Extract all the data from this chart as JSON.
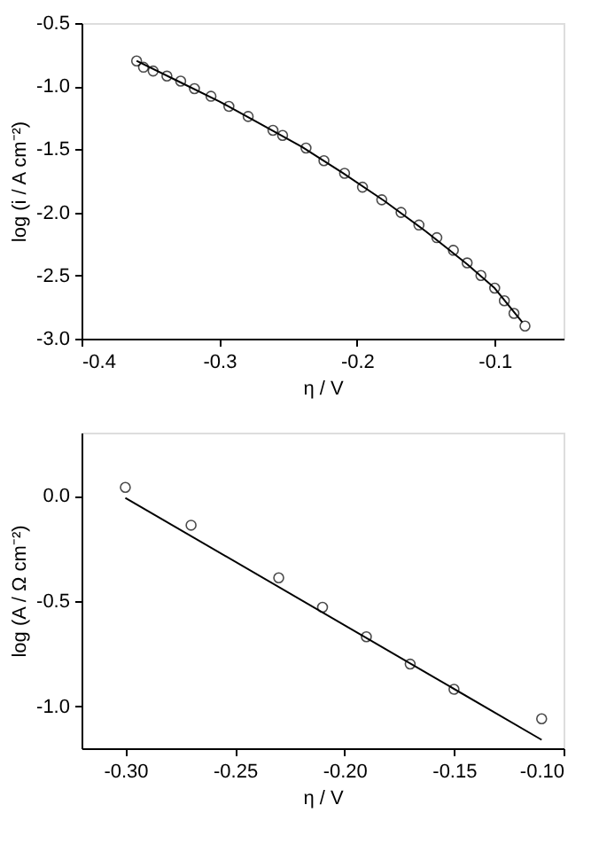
{
  "chart_data": [
    {
      "type": "scatter",
      "xlabel": "η / V",
      "ylabel": "log (i / A cm⁻²)",
      "grid": false,
      "legend": false,
      "xlim": [
        -0.4,
        -0.05
      ],
      "xticks": [
        -0.4,
        -0.3,
        -0.2,
        -0.1
      ],
      "ylim": [
        -3.0,
        -0.5
      ],
      "yticks": [
        -0.5,
        {
          "value": -1.0,
          "label": "-1.0"
        },
        -1.5,
        {
          "value": -2.0,
          "label": "-2.0"
        },
        -2.5,
        {
          "value": -3.0,
          "label": "-3.0"
        }
      ],
      "series": [
        {
          "marker": "circle",
          "color": "#000000",
          "x": [
            -0.36,
            -0.355,
            -0.348,
            -0.338,
            -0.328,
            -0.318,
            -0.306,
            -0.293,
            -0.279,
            -0.261,
            -0.254,
            -0.237,
            -0.224,
            -0.209,
            -0.196,
            -0.182,
            -0.168,
            -0.155,
            -0.142,
            -0.13,
            -0.12,
            -0.11,
            -0.1,
            -0.093,
            -0.086,
            -0.078
          ],
          "values": [
            -0.8,
            -0.85,
            -0.88,
            -0.92,
            -0.96,
            -1.02,
            -1.08,
            -1.16,
            -1.24,
            -1.35,
            -1.39,
            -1.49,
            -1.59,
            -1.69,
            -1.8,
            -1.9,
            -2.0,
            -2.1,
            -2.2,
            -2.3,
            -2.4,
            -2.5,
            -2.6,
            -2.7,
            -2.8,
            -2.9
          ]
        },
        {
          "type": "line",
          "line_style": "solid",
          "color": "#000000",
          "x": [
            -0.36,
            -0.33,
            -0.3,
            -0.27,
            -0.24,
            -0.21,
            -0.18,
            -0.15,
            -0.12,
            -0.1,
            -0.08
          ],
          "values": [
            -0.8,
            -0.96,
            -1.12,
            -1.3,
            -1.48,
            -1.69,
            -1.91,
            -2.15,
            -2.41,
            -2.6,
            -2.87
          ]
        }
      ]
    },
    {
      "type": "scatter",
      "xlabel": "η / V",
      "ylabel": "log (A / Ω cm⁻²)",
      "grid": false,
      "legend": false,
      "xlim": [
        -0.32,
        -0.1
      ],
      "xticks": [
        {
          "value": -0.3,
          "label": "-0.30"
        },
        {
          "value": -0.25,
          "label": "-0.25"
        },
        {
          "value": -0.2,
          "label": "-0.20"
        },
        {
          "value": -0.15,
          "label": "-0.15"
        },
        {
          "value": -0.1,
          "label": "-0.10"
        }
      ],
      "ylim": [
        -1.2,
        0.3
      ],
      "yticks": [
        {
          "value": 0,
          "label": "0.0"
        },
        -0.5,
        {
          "value": -1.0,
          "label": "-1.0"
        }
      ],
      "series": [
        {
          "marker": "circle",
          "color": "#000000",
          "x": [
            -0.3,
            -0.27,
            -0.23,
            -0.21,
            -0.19,
            -0.17,
            -0.15,
            -0.11
          ],
          "values": [
            0.04,
            -0.14,
            -0.39,
            -0.53,
            -0.67,
            -0.8,
            -0.92,
            -1.06
          ]
        },
        {
          "type": "line",
          "line_style": "solid",
          "color": "#000000",
          "x": [
            -0.3,
            -0.11
          ],
          "values": [
            -0.01,
            -1.16
          ]
        }
      ]
    }
  ]
}
